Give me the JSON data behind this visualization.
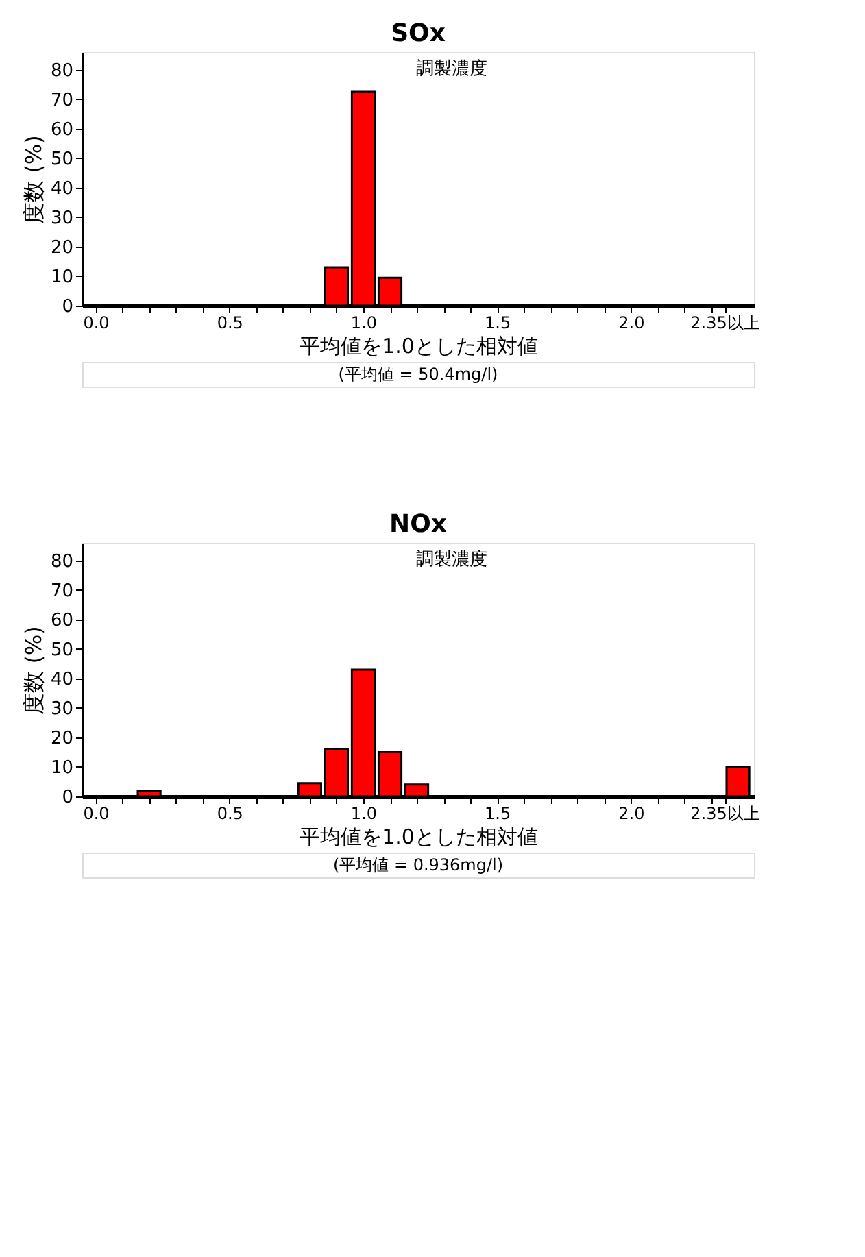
{
  "chart_data": [
    {
      "type": "bar",
      "title": "SOx",
      "xlabel": "平均値を1.0とした相対値",
      "ylabel": "度数 (%)",
      "x": [
        0.9,
        1.0,
        1.1
      ],
      "series": [
        {
          "color": "#ff0000",
          "values": [
            13,
            72.5,
            9.5
          ]
        }
      ],
      "xlim": [
        -0.05,
        2.46
      ],
      "xticks": [
        {
          "value": 0,
          "label": "0.0"
        },
        {
          "value": 0.1,
          "label": null
        },
        {
          "value": 0.2,
          "label": null
        },
        {
          "value": 0.3,
          "label": null
        },
        {
          "value": 0.4,
          "label": null
        },
        {
          "value": 0.5,
          "label": "0.5"
        },
        {
          "value": 0.6,
          "label": null
        },
        {
          "value": 0.7,
          "label": null
        },
        {
          "value": 0.8,
          "label": null
        },
        {
          "value": 0.9,
          "label": null
        },
        {
          "value": 1,
          "label": "1.0"
        },
        {
          "value": 1.1,
          "label": null
        },
        {
          "value": 1.2,
          "label": null
        },
        {
          "value": 1.3,
          "label": null
        },
        {
          "value": 1.4,
          "label": null
        },
        {
          "value": 1.5,
          "label": "1.5"
        },
        {
          "value": 1.6,
          "label": null
        },
        {
          "value": 1.7,
          "label": null
        },
        {
          "value": 1.8,
          "label": null
        },
        {
          "value": 1.9,
          "label": null
        },
        {
          "value": 2,
          "label": "2.0"
        },
        {
          "value": 2.1,
          "label": null
        },
        {
          "value": 2.2,
          "label": null
        },
        {
          "value": 2.3,
          "label": null
        },
        {
          "value": 2.35,
          "label": "2.35以上"
        }
      ],
      "ylim": [
        0,
        86
      ],
      "yticks": [
        0,
        10,
        20,
        30,
        40,
        50,
        60,
        70,
        80
      ],
      "grid": false,
      "legend": false,
      "annotations": [
        "調製濃度",
        "(平均値 = 50.4mg/l)"
      ]
    },
    {
      "type": "bar",
      "title": "NOx",
      "xlabel": "平均値を1.0とした相対値",
      "ylabel": "度数 (%)",
      "x": [
        0.2,
        0.8,
        0.9,
        1.0,
        1.1,
        1.2,
        2.4
      ],
      "series": [
        {
          "color": "#ff0000",
          "values": [
            2,
            4.5,
            16,
            43,
            15,
            4,
            10
          ]
        }
      ],
      "xlim": [
        -0.05,
        2.46
      ],
      "xticks": [
        {
          "value": 0,
          "label": "0.0"
        },
        {
          "value": 0.1,
          "label": null
        },
        {
          "value": 0.2,
          "label": null
        },
        {
          "value": 0.3,
          "label": null
        },
        {
          "value": 0.4,
          "label": null
        },
        {
          "value": 0.5,
          "label": "0.5"
        },
        {
          "value": 0.6,
          "label": null
        },
        {
          "value": 0.7,
          "label": null
        },
        {
          "value": 0.8,
          "label": null
        },
        {
          "value": 0.9,
          "label": null
        },
        {
          "value": 1,
          "label": "1.0"
        },
        {
          "value": 1.1,
          "label": null
        },
        {
          "value": 1.2,
          "label": null
        },
        {
          "value": 1.3,
          "label": null
        },
        {
          "value": 1.4,
          "label": null
        },
        {
          "value": 1.5,
          "label": "1.5"
        },
        {
          "value": 1.6,
          "label": null
        },
        {
          "value": 1.7,
          "label": null
        },
        {
          "value": 1.8,
          "label": null
        },
        {
          "value": 1.9,
          "label": null
        },
        {
          "value": 2,
          "label": "2.0"
        },
        {
          "value": 2.1,
          "label": null
        },
        {
          "value": 2.2,
          "label": null
        },
        {
          "value": 2.3,
          "label": null
        },
        {
          "value": 2.35,
          "label": "2.35以上"
        }
      ],
      "ylim": [
        0,
        86
      ],
      "yticks": [
        0,
        10,
        20,
        30,
        40,
        50,
        60,
        70,
        80
      ],
      "grid": false,
      "legend": false,
      "annotations": [
        "調製濃度",
        "(平均値 = 0.936mg/l)"
      ]
    }
  ]
}
